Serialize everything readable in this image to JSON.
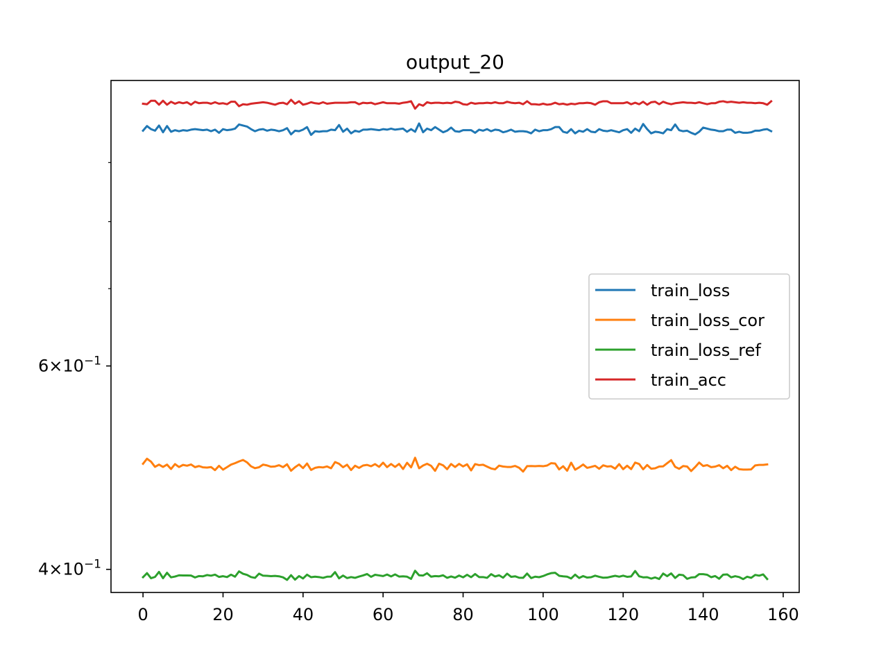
{
  "chart_data": {
    "type": "line",
    "title": "output_20",
    "xlabel": "",
    "ylabel": "",
    "yscale": "log",
    "xlim": [
      -8,
      164
    ],
    "ylim": [
      0.382,
      1.06
    ],
    "x_ticks": [
      0,
      20,
      40,
      60,
      80,
      100,
      120,
      140,
      160
    ],
    "x_tick_labels": [
      "0",
      "20",
      "40",
      "60",
      "80",
      "100",
      "120",
      "140",
      "160"
    ],
    "y_major_ticks": [
      {
        "value": 0.6,
        "mantissa": "6",
        "base": "10",
        "exponent": "−1"
      },
      {
        "value": 0.4,
        "mantissa": "4",
        "base": "10",
        "exponent": "−1"
      }
    ],
    "y_minor_ticks": [
      0.7,
      0.8,
      0.9
    ],
    "grid": false,
    "legend_position": "center-right",
    "series": [
      {
        "name": "train_loss",
        "color": "#1f77b4",
        "values": [
          0.959,
          0.968,
          0.962,
          0.959,
          0.969,
          0.956,
          0.968,
          0.957,
          0.96,
          0.958,
          0.96,
          0.959,
          0.961,
          0.962,
          0.961,
          0.96,
          0.961,
          0.958,
          0.961,
          0.955,
          0.962,
          0.96,
          0.961,
          0.963,
          0.971,
          0.969,
          0.967,
          0.962,
          0.958,
          0.961,
          0.962,
          0.959,
          0.961,
          0.96,
          0.958,
          0.96,
          0.964,
          0.952,
          0.959,
          0.958,
          0.961,
          0.966,
          0.951,
          0.958,
          0.957,
          0.958,
          0.958,
          0.961,
          0.96,
          0.97,
          0.957,
          0.963,
          0.954,
          0.959,
          0.957,
          0.961,
          0.961,
          0.962,
          0.961,
          0.96,
          0.962,
          0.961,
          0.963,
          0.961,
          0.962,
          0.963,
          0.957,
          0.962,
          0.957,
          0.973,
          0.956,
          0.963,
          0.96,
          0.966,
          0.961,
          0.956,
          0.959,
          0.965,
          0.958,
          0.957,
          0.96,
          0.96,
          0.96,
          0.955,
          0.961,
          0.959,
          0.962,
          0.958,
          0.961,
          0.96,
          0.956,
          0.958,
          0.961,
          0.957,
          0.958,
          0.958,
          0.957,
          0.954,
          0.961,
          0.958,
          0.96,
          0.96,
          0.962,
          0.966,
          0.966,
          0.957,
          0.955,
          0.962,
          0.954,
          0.959,
          0.957,
          0.962,
          0.957,
          0.956,
          0.962,
          0.959,
          0.958,
          0.96,
          0.958,
          0.956,
          0.96,
          0.962,
          0.955,
          0.963,
          0.958,
          0.972,
          0.962,
          0.954,
          0.957,
          0.956,
          0.954,
          0.962,
          0.96,
          0.971,
          0.96,
          0.958,
          0.959,
          0.955,
          0.952,
          0.957,
          0.965,
          0.963,
          0.961,
          0.96,
          0.958,
          0.958,
          0.961,
          0.961,
          0.955,
          0.957,
          0.955,
          0.955,
          0.956,
          0.959,
          0.959,
          0.961,
          0.962,
          0.958
        ]
      },
      {
        "name": "train_loss_cor",
        "color": "#ff7f0e",
        "values": [
          0.4937,
          0.4987,
          0.4958,
          0.4907,
          0.4929,
          0.4906,
          0.4929,
          0.4886,
          0.4934,
          0.4905,
          0.4926,
          0.4918,
          0.493,
          0.4904,
          0.4915,
          0.4902,
          0.49,
          0.4905,
          0.4875,
          0.4917,
          0.488,
          0.4904,
          0.4929,
          0.4943,
          0.496,
          0.4975,
          0.4951,
          0.4912,
          0.4894,
          0.4903,
          0.4929,
          0.4921,
          0.4908,
          0.4911,
          0.4923,
          0.4904,
          0.4932,
          0.4869,
          0.4903,
          0.493,
          0.4895,
          0.494,
          0.4877,
          0.4897,
          0.4905,
          0.4901,
          0.4911,
          0.4893,
          0.4954,
          0.4937,
          0.4903,
          0.4928,
          0.4876,
          0.4918,
          0.4897,
          0.492,
          0.4926,
          0.4913,
          0.4934,
          0.4907,
          0.4948,
          0.4904,
          0.4935,
          0.4906,
          0.4936,
          0.4886,
          0.4947,
          0.4902,
          0.4997,
          0.4893,
          0.492,
          0.4937,
          0.4917,
          0.4868,
          0.4938,
          0.4922,
          0.4884,
          0.4935,
          0.4905,
          0.4936,
          0.4911,
          0.4932,
          0.4872,
          0.4934,
          0.4924,
          0.4928,
          0.4909,
          0.4891,
          0.4883,
          0.4919,
          0.491,
          0.4906,
          0.4906,
          0.4916,
          0.4898,
          0.4861,
          0.4914,
          0.4915,
          0.4913,
          0.4916,
          0.4913,
          0.492,
          0.4943,
          0.494,
          0.4882,
          0.4913,
          0.4869,
          0.4948,
          0.4879,
          0.4902,
          0.493,
          0.4897,
          0.4906,
          0.4917,
          0.4888,
          0.4922,
          0.491,
          0.4913,
          0.4889,
          0.4934,
          0.4884,
          0.4918,
          0.4885,
          0.4949,
          0.4935,
          0.4883,
          0.4925,
          0.4889,
          0.4893,
          0.491,
          0.4912,
          0.4943,
          0.4973,
          0.4907,
          0.4888,
          0.4915,
          0.491,
          0.4866,
          0.4905,
          0.4949,
          0.4915,
          0.4924,
          0.4904,
          0.4909,
          0.4923,
          0.4893,
          0.4917,
          0.4875,
          0.4908,
          0.4884,
          0.488,
          0.488,
          0.4882,
          0.4921,
          0.4926,
          0.4926,
          0.4931
        ]
      },
      {
        "name": "train_loss_ref",
        "color": "#2ca02c",
        "values": [
          0.3938,
          0.397,
          0.393,
          0.394,
          0.398,
          0.393,
          0.3973,
          0.3937,
          0.3943,
          0.3953,
          0.3952,
          0.3952,
          0.3951,
          0.3936,
          0.3947,
          0.3945,
          0.3955,
          0.395,
          0.3958,
          0.394,
          0.3946,
          0.3939,
          0.3958,
          0.3942,
          0.3984,
          0.3965,
          0.3956,
          0.3939,
          0.3933,
          0.3966,
          0.395,
          0.3949,
          0.3946,
          0.3948,
          0.3945,
          0.3937,
          0.3917,
          0.3954,
          0.3919,
          0.3947,
          0.3928,
          0.3958,
          0.3938,
          0.3942,
          0.3939,
          0.3933,
          0.3942,
          0.3943,
          0.3978,
          0.3929,
          0.3951,
          0.3931,
          0.3939,
          0.3933,
          0.3943,
          0.3952,
          0.3963,
          0.3941,
          0.3957,
          0.3952,
          0.3947,
          0.3959,
          0.3944,
          0.396,
          0.3943,
          0.3945,
          0.3942,
          0.3925,
          0.3989,
          0.3953,
          0.3951,
          0.3969,
          0.3942,
          0.3947,
          0.3945,
          0.3953,
          0.3933,
          0.3944,
          0.3934,
          0.3951,
          0.3937,
          0.3957,
          0.3938,
          0.3963,
          0.3939,
          0.3939,
          0.3933,
          0.3962,
          0.3944,
          0.3953,
          0.3934,
          0.3966,
          0.3941,
          0.3945,
          0.3934,
          0.3933,
          0.3967,
          0.3931,
          0.3942,
          0.3938,
          0.3947,
          0.396,
          0.397,
          0.3973,
          0.3949,
          0.3945,
          0.3942,
          0.3928,
          0.3958,
          0.3932,
          0.3947,
          0.3935,
          0.3938,
          0.395,
          0.3941,
          0.3934,
          0.3935,
          0.3942,
          0.3949,
          0.3942,
          0.395,
          0.3941,
          0.3944,
          0.3987,
          0.3945,
          0.3937,
          0.3938,
          0.3927,
          0.3936,
          0.3924,
          0.3967,
          0.3946,
          0.3968,
          0.3932,
          0.3958,
          0.3954,
          0.3925,
          0.3936,
          0.3938,
          0.3962,
          0.3962,
          0.3957,
          0.3938,
          0.3947,
          0.3926,
          0.3958,
          0.396,
          0.3937,
          0.3946,
          0.3939,
          0.3923,
          0.3942,
          0.3933,
          0.3956,
          0.395,
          0.396,
          0.3924
        ]
      },
      {
        "name": "train_acc",
        "color": "#d62728",
        "values": [
          1.012,
          1.011,
          1.018,
          1.018,
          1.01,
          1.018,
          1.01,
          1.016,
          1.012,
          1.015,
          1.013,
          1.015,
          1.01,
          1.016,
          1.013,
          1.014,
          1.014,
          1.012,
          1.015,
          1.012,
          1.013,
          1.011,
          1.016,
          1.016,
          1.007,
          1.011,
          1.01,
          1.012,
          1.013,
          1.014,
          1.015,
          1.014,
          1.012,
          1.01,
          1.013,
          1.014,
          1.011,
          1.02,
          1.012,
          1.017,
          1.01,
          1.012,
          1.015,
          1.013,
          1.012,
          1.015,
          1.012,
          1.013,
          1.014,
          1.014,
          1.014,
          1.014,
          1.015,
          1.015,
          1.011,
          1.014,
          1.013,
          1.014,
          1.011,
          1.013,
          1.015,
          1.013,
          1.013,
          1.013,
          1.012,
          1.014,
          1.015,
          1.017,
          1.002,
          1.011,
          1.008,
          1.015,
          1.013,
          1.014,
          1.014,
          1.013,
          1.014,
          1.013,
          1.016,
          1.015,
          1.011,
          1.01,
          1.014,
          1.012,
          1.013,
          1.013,
          1.014,
          1.013,
          1.015,
          1.013,
          1.013,
          1.016,
          1.014,
          1.013,
          1.014,
          1.011,
          1.017,
          1.011,
          1.011,
          1.01,
          1.012,
          1.01,
          1.011,
          1.014,
          1.011,
          1.012,
          1.01,
          1.012,
          1.011,
          1.013,
          1.013,
          1.014,
          1.013,
          1.01,
          1.015,
          1.017,
          1.017,
          1.013,
          1.013,
          1.013,
          1.013,
          1.015,
          1.011,
          1.014,
          1.011,
          1.016,
          1.01,
          1.015,
          1.016,
          1.011,
          1.016,
          1.013,
          1.011,
          1.013,
          1.014,
          1.015,
          1.014,
          1.014,
          1.013,
          1.015,
          1.013,
          1.011,
          1.013,
          1.013,
          1.016,
          1.017,
          1.015,
          1.016,
          1.015,
          1.014,
          1.015,
          1.014,
          1.014,
          1.013,
          1.014,
          1.013,
          1.01,
          1.017
        ]
      }
    ]
  }
}
